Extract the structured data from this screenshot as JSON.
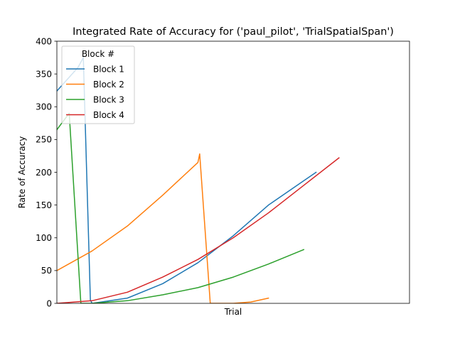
{
  "chart_data": {
    "type": "line",
    "title": "Integrated Rate of Accuracy for ('paul_pilot', 'TrialSpatialSpan')",
    "xlabel": "Trial",
    "ylabel": "Rate of Accuracy",
    "xlim": [
      0,
      100
    ],
    "ylim": [
      0,
      400
    ],
    "yticks": [
      0,
      50,
      100,
      150,
      200,
      250,
      300,
      350,
      400
    ],
    "grid": false,
    "legend": {
      "title": "Block #",
      "placement": "top-left"
    },
    "series": [
      {
        "name": "Block 1",
        "color": "#1f77b4",
        "points": [
          [
            0,
            324
          ],
          [
            6,
            360
          ],
          [
            7.5,
            375
          ],
          [
            9.5,
            5
          ],
          [
            10,
            0
          ],
          [
            20,
            8
          ],
          [
            30,
            30
          ],
          [
            40,
            62
          ],
          [
            50,
            103
          ],
          [
            60,
            150
          ],
          [
            73.5,
            200
          ]
        ]
      },
      {
        "name": "Block 2",
        "color": "#ff7f0e",
        "points": [
          [
            0,
            50
          ],
          [
            10,
            80
          ],
          [
            20,
            118
          ],
          [
            30,
            165
          ],
          [
            40,
            215
          ],
          [
            40.5,
            228
          ],
          [
            43.5,
            0
          ],
          [
            50,
            0
          ],
          [
            55,
            2
          ],
          [
            60,
            8
          ]
        ]
      },
      {
        "name": "Block 3",
        "color": "#2ca02c",
        "points": [
          [
            0,
            265
          ],
          [
            3.5,
            290
          ],
          [
            6.8,
            0
          ],
          [
            10,
            0
          ],
          [
            20,
            4
          ],
          [
            30,
            13
          ],
          [
            40,
            24
          ],
          [
            50,
            40
          ],
          [
            60,
            60
          ],
          [
            70,
            82
          ]
        ]
      },
      {
        "name": "Block 4",
        "color": "#d62728",
        "points": [
          [
            0,
            0
          ],
          [
            10,
            4
          ],
          [
            20,
            17
          ],
          [
            30,
            40
          ],
          [
            40,
            67
          ],
          [
            50,
            100
          ],
          [
            60,
            138
          ],
          [
            70,
            180
          ],
          [
            80,
            222
          ]
        ]
      }
    ]
  }
}
